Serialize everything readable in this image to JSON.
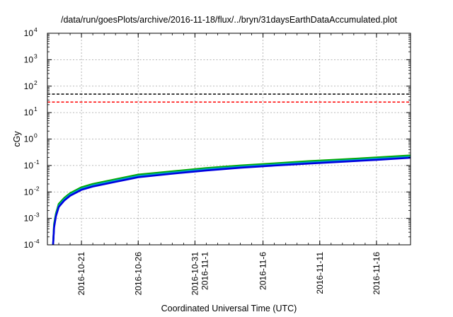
{
  "chart_data": {
    "type": "line",
    "title": "/data/run/goesPlots/archive/2016-11-18/flux/../bryn/31daysEarthDataAccumulated.plot",
    "xlabel": "Coordinated Universal Time (UTC)",
    "ylabel": "cGy",
    "yscale": "log",
    "ylim": [
      0.0001,
      10000
    ],
    "xlim": [
      "2016-10-18",
      "2016-11-19"
    ],
    "grid": true,
    "legend": "none",
    "y_ticks": [
      {
        "base": "10",
        "exp": "-4",
        "value": 0.0001
      },
      {
        "base": "10",
        "exp": "-3",
        "value": 0.001
      },
      {
        "base": "10",
        "exp": "-2",
        "value": 0.01
      },
      {
        "base": "10",
        "exp": "-1",
        "value": 0.1
      },
      {
        "base": "10",
        "exp": "0",
        "value": 1
      },
      {
        "base": "10",
        "exp": "1",
        "value": 10
      },
      {
        "base": "10",
        "exp": "2",
        "value": 100
      },
      {
        "base": "10",
        "exp": "3",
        "value": 1000
      },
      {
        "base": "10",
        "exp": "4",
        "value": 10000
      }
    ],
    "x_ticks": [
      {
        "date": "2016-10-21",
        "labels": [
          "2016-10-21"
        ]
      },
      {
        "date": "2016-10-26",
        "labels": [
          "2016-10-26"
        ]
      },
      {
        "date": "2016-10-31",
        "labels": [
          "2016-10-31",
          "2016-11-1"
        ]
      },
      {
        "date": "2016-11-06",
        "labels": [
          "2016-11-6"
        ]
      },
      {
        "date": "2016-11-11",
        "labels": [
          "2016-11-11"
        ]
      },
      {
        "date": "2016-11-16",
        "labels": [
          "2016-11-16"
        ]
      }
    ],
    "series": [
      {
        "color": "#00aa00",
        "x": [
          "2016-10-18T12:00",
          "2016-10-18T14:00",
          "2016-10-18T18:00",
          "2016-10-19",
          "2016-10-19T12:00",
          "2016-10-20",
          "2016-10-21",
          "2016-10-22",
          "2016-10-24",
          "2016-10-26",
          "2016-10-29",
          "2016-11-01",
          "2016-11-04",
          "2016-11-07",
          "2016-11-10",
          "2016-11-13",
          "2016-11-16",
          "2016-11-19"
        ],
        "y": [
          0.0001,
          0.0006,
          0.0015,
          0.0035,
          0.006,
          0.009,
          0.015,
          0.02,
          0.03,
          0.045,
          0.06,
          0.08,
          0.1,
          0.12,
          0.145,
          0.17,
          0.2,
          0.24
        ]
      },
      {
        "color": "#00a0c8",
        "x": [
          "2016-10-18T12:00",
          "2016-10-18T14:00",
          "2016-10-18T18:00",
          "2016-10-19",
          "2016-10-19T12:00",
          "2016-10-20",
          "2016-10-21",
          "2016-10-22",
          "2016-10-24",
          "2016-10-26",
          "2016-10-29",
          "2016-11-01",
          "2016-11-04",
          "2016-11-07",
          "2016-11-10",
          "2016-11-13",
          "2016-11-16",
          "2016-11-19"
        ],
        "y": [
          0.0001,
          0.0005,
          0.0013,
          0.003,
          0.0053,
          0.008,
          0.0132,
          0.0178,
          0.027,
          0.04,
          0.054,
          0.072,
          0.09,
          0.108,
          0.13,
          0.152,
          0.18,
          0.215
        ]
      },
      {
        "color": "#0000e0",
        "x": [
          "2016-10-18T12:00",
          "2016-10-18T14:00",
          "2016-10-18T18:00",
          "2016-10-19",
          "2016-10-19T12:00",
          "2016-10-20",
          "2016-10-21",
          "2016-10-22",
          "2016-10-24",
          "2016-10-26",
          "2016-10-29",
          "2016-11-01",
          "2016-11-04",
          "2016-11-07",
          "2016-11-10",
          "2016-11-13",
          "2016-11-16",
          "2016-11-19"
        ],
        "y": [
          0.0001,
          0.00045,
          0.0012,
          0.0027,
          0.0048,
          0.0072,
          0.012,
          0.016,
          0.024,
          0.036,
          0.049,
          0.065,
          0.082,
          0.099,
          0.118,
          0.138,
          0.163,
          0.195
        ]
      }
    ],
    "thresholds": [
      {
        "value": 50,
        "color": "#000000"
      },
      {
        "value": 25,
        "color": "#ff0000"
      }
    ]
  }
}
